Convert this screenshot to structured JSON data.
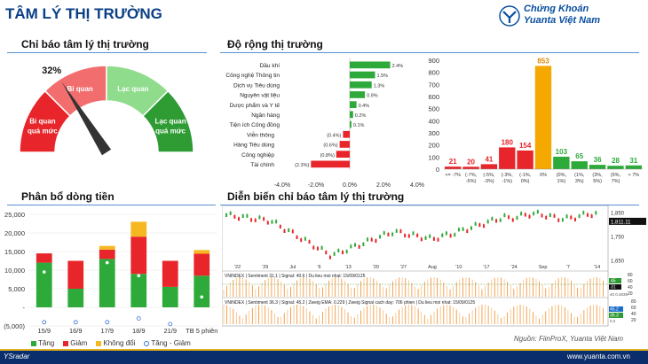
{
  "header": {
    "title": "TÂM LÝ THỊ TRƯỜNG",
    "brand_line1": "Chứng Khoán",
    "brand_line2": "Yuanta Việt Nam"
  },
  "sections": {
    "indicator": "Chỉ báo tâm lý thị trường",
    "breadth": "Độ rộng thị trường",
    "flow": "Phân bổ dòng tiền",
    "trend": "Diễn biến chỉ báo tâm lý thị trường"
  },
  "gauge": {
    "value_label": "32%",
    "value": 0.32,
    "zones": [
      {
        "label_lines": [
          "Bi quan",
          "quá mức"
        ],
        "color": "#e8252a"
      },
      {
        "label_lines": [
          "Bi quan"
        ],
        "color": "#f26d6d"
      },
      {
        "label_lines": [
          "Lạc quan"
        ],
        "color": "#8fdc8c"
      },
      {
        "label_lines": [
          "Lạc quan",
          "quá mức"
        ],
        "color": "#2e9b33"
      }
    ]
  },
  "breadth_chart": {
    "type": "bar",
    "orientation": "horizontal",
    "categories": [
      "Dầu khí",
      "Công nghệ Thông tin",
      "Dịch vụ Tiêu dùng",
      "Nguyên vật liệu",
      "Dược phẩm và Y tế",
      "Ngân hàng",
      "Tiện ích Công đồng",
      "Viễn thông",
      "Hàng Tiêu dùng",
      "Công nghiệp",
      "Tài chính"
    ],
    "values": [
      2.4,
      1.5,
      1.3,
      0.9,
      0.4,
      0.2,
      0.1,
      -0.4,
      -0.6,
      -0.8,
      -2.3
    ],
    "data_labels": [
      "2.4%",
      "1.5%",
      "1.3%",
      "0.9%",
      "0.4%",
      "0.2%",
      "0.1%",
      "(0.4%)",
      "(0.6%)",
      "(0.8%)",
      "(2.3%)"
    ],
    "xlim": [
      -4.0,
      4.0
    ],
    "xticks": [
      "-4.0%",
      "-2.0%",
      "0.0%",
      "2.0%",
      "4.0%"
    ],
    "colors": {
      "positive": "#2eaa3a",
      "negative": "#e8252a"
    }
  },
  "distribution_chart": {
    "type": "bar",
    "categories": [
      [
        "<= -7%"
      ],
      [
        "(-7%,",
        "-5%)"
      ],
      [
        "(-5%,",
        "-3%)"
      ],
      [
        "(-3%,",
        "-1%)"
      ],
      [
        "(-1%,",
        "0%)"
      ],
      [
        "0%"
      ],
      [
        "(0%,",
        "1%)"
      ],
      [
        "(1%,",
        "3%)"
      ],
      [
        "(3%,",
        "5%)"
      ],
      [
        "(5%,",
        "7%)"
      ],
      [
        "> 7%"
      ]
    ],
    "values": [
      21,
      20,
      41,
      180,
      154,
      853,
      103,
      65,
      36,
      28,
      31
    ],
    "colors": [
      "#e8252a",
      "#e8252a",
      "#e8252a",
      "#e8252a",
      "#e8252a",
      "#f5a800",
      "#2eaa3a",
      "#2eaa3a",
      "#2eaa3a",
      "#2eaa3a",
      "#2eaa3a"
    ],
    "ylim": [
      0,
      900
    ],
    "yticks": [
      "0",
      "100",
      "200",
      "300",
      "400",
      "500",
      "600",
      "700",
      "800",
      "900"
    ]
  },
  "flow_chart": {
    "type": "bar",
    "stacked": true,
    "categories": [
      "15/9",
      "16/9",
      "17/9",
      "18/9",
      "21/9",
      "TB 5 phiên"
    ],
    "series": [
      {
        "name": "Tăng",
        "color": "#2eaa3a",
        "values": [
          12000,
          5000,
          13000,
          9000,
          5500,
          8500
        ]
      },
      {
        "name": "Giảm",
        "color": "#e8252a",
        "values": [
          2500,
          7500,
          2500,
          10000,
          7000,
          5900
        ]
      },
      {
        "name": "Không đổi",
        "color": "#f5b820",
        "values": [
          0,
          0,
          1000,
          4000,
          0,
          1000
        ]
      }
    ],
    "markers": {
      "name": "Tăng - Giảm",
      "inside": [
        9500,
        null,
        12000,
        8500,
        null,
        2800
      ],
      "below": [
        -4000,
        -4000,
        -4000,
        -3000,
        -4500,
        null
      ]
    },
    "ylim": [
      -5000,
      25000
    ],
    "yticks": [
      "(5,000)",
      "-",
      "5,000",
      "10,000",
      "15,000",
      "20,000",
      "25,000"
    ]
  },
  "legend": [
    "Tăng",
    "Giảm",
    "Không đổi",
    "Tăng - Giảm"
  ],
  "tech_chart": {
    "date_labels": [
      "'22",
      "'29",
      "Jul",
      "'6",
      "'13",
      "'20",
      "'27",
      "Aug",
      "'10",
      "'17",
      "'24",
      "Sep",
      "'7",
      "'14"
    ],
    "price_ticks": [
      "1,850",
      "1,750",
      "1,650"
    ],
    "price_badge": "1,811.11",
    "panel1_text": "VNINDEX | Sentiment 31.1 | Signal: 40.6 | Du lieu moi nhat: 15/09/0125",
    "panel2_text": "VNINDEX | Sentiment 36.3 | Signal: 45.2 | Zweig EMA: 0.229 | Zweig Signal cach day: 706 phien | Du lieu moi nhat: 15/09/0125",
    "panel1_ticks": [
      "80",
      "60",
      "40",
      "20"
    ],
    "panel2_ticks": [
      "80",
      "60",
      "40",
      "20"
    ],
    "panel1_badges": [
      "45",
      "31"
    ],
    "panel2_badges": [
      "45.2",
      "36.3"
    ],
    "panel_right_labels": [
      "40 0.4839",
      "0.2"
    ]
  },
  "source": "Nguồn: FiinProX, Yuanta Việt Nam",
  "footer": {
    "left": "YSradar",
    "right": "www.yuanta.com.vn"
  }
}
